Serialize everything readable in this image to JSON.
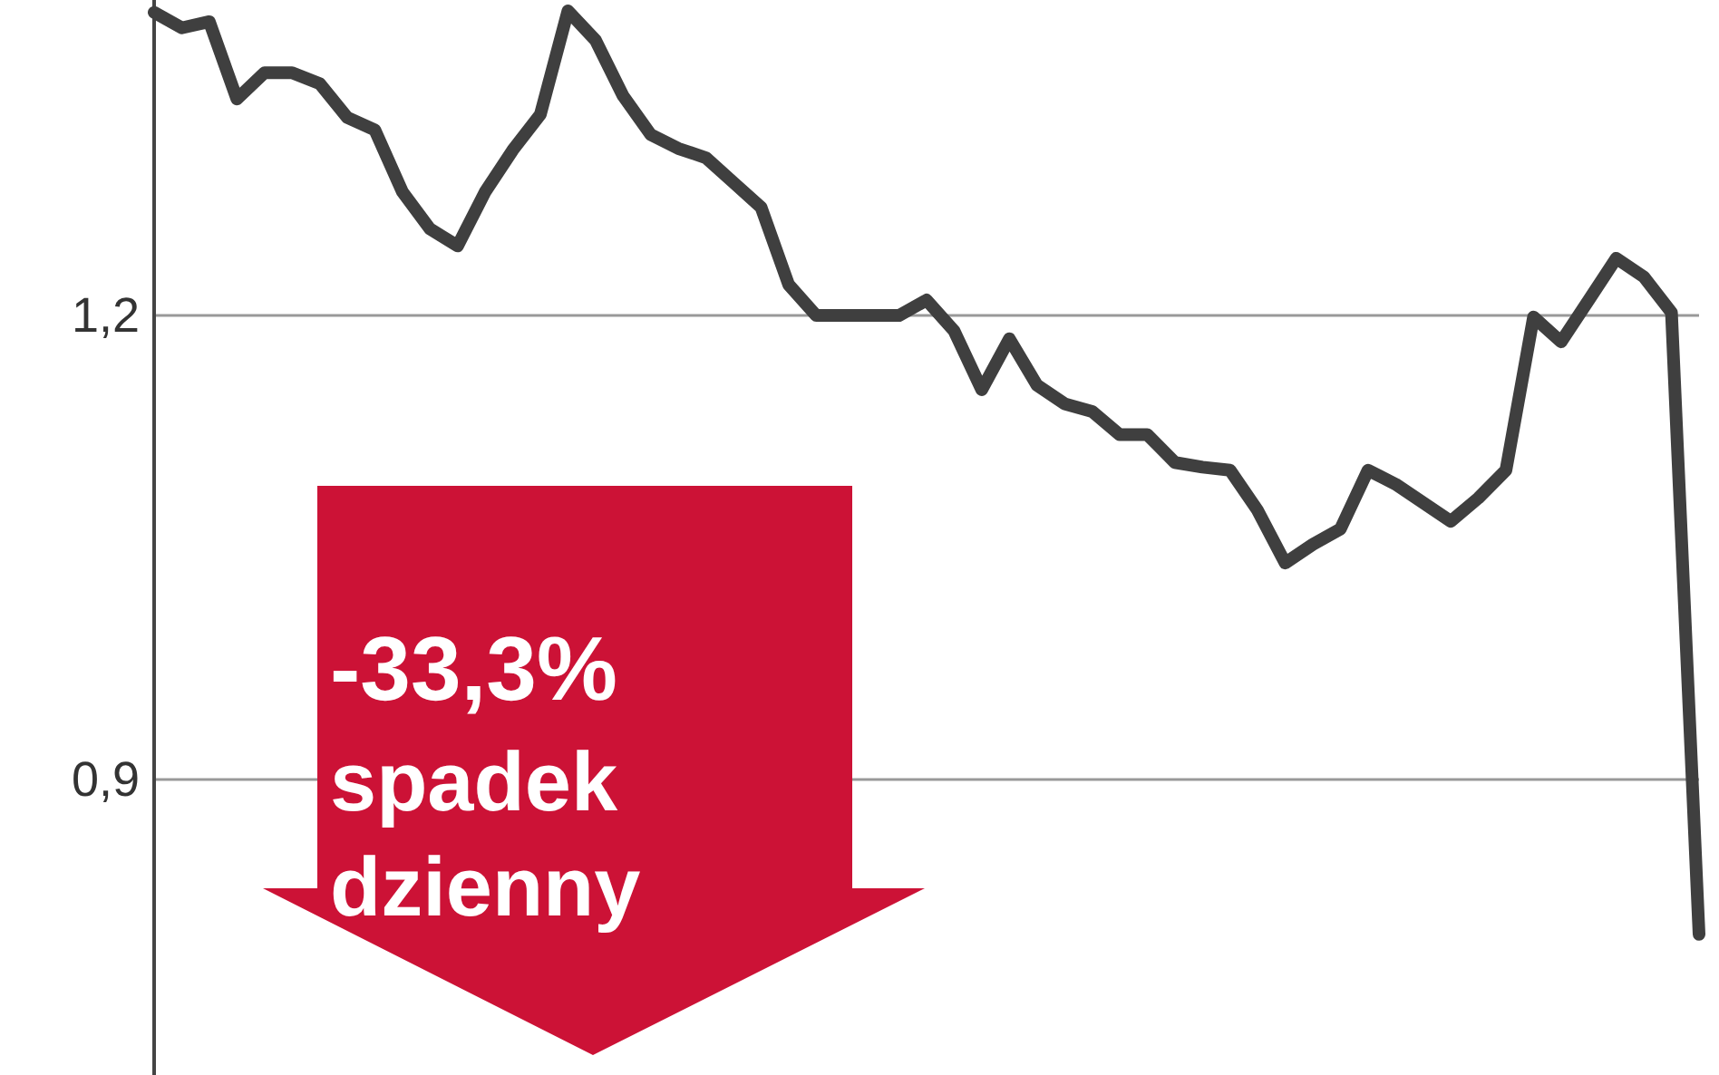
{
  "chart_data": {
    "type": "line",
    "categories": [
      null,
      null,
      null,
      null,
      null,
      null,
      null,
      null,
      null,
      null,
      null,
      null,
      null,
      null,
      null,
      null,
      null,
      null,
      null,
      null,
      null,
      null,
      null,
      null,
      null,
      null,
      null,
      null,
      null,
      null,
      null,
      null,
      null,
      null,
      null,
      null,
      null,
      null,
      null,
      null,
      null,
      null,
      null,
      null,
      null,
      null,
      null,
      null,
      null,
      null,
      null,
      null,
      null,
      null,
      null,
      null,
      null
    ],
    "series": [
      {
        "color": "#3f3f3f",
        "values": [
          1.396,
          1.386,
          1.39,
          1.34,
          1.357,
          1.357,
          1.35,
          1.328,
          1.32,
          1.28,
          1.256,
          1.245,
          1.28,
          1.307,
          1.33,
          1.397,
          1.378,
          1.342,
          1.317,
          1.308,
          1.302,
          1.286,
          1.27,
          1.22,
          1.2,
          1.2,
          1.2,
          1.2,
          1.21,
          1.19,
          1.152,
          1.185,
          1.155,
          1.143,
          1.138,
          1.123,
          1.123,
          1.105,
          1.102,
          1.1,
          1.074,
          1.04,
          1.052,
          1.062,
          1.1,
          1.091,
          1.079,
          1.067,
          1.082,
          1.1,
          1.199,
          1.183,
          1.21,
          1.237,
          1.225,
          1.202,
          0.8
        ]
      }
    ],
    "ylim": [
      0.709,
      1.404
    ],
    "yticks": [
      {
        "value": 0.9,
        "label": "0,9"
      },
      {
        "value": 1.2,
        "label": "1,2"
      }
    ],
    "grid": "y",
    "line_style": "solid",
    "annotations": [
      "-33,3%",
      "spadek dzienny"
    ]
  }
}
